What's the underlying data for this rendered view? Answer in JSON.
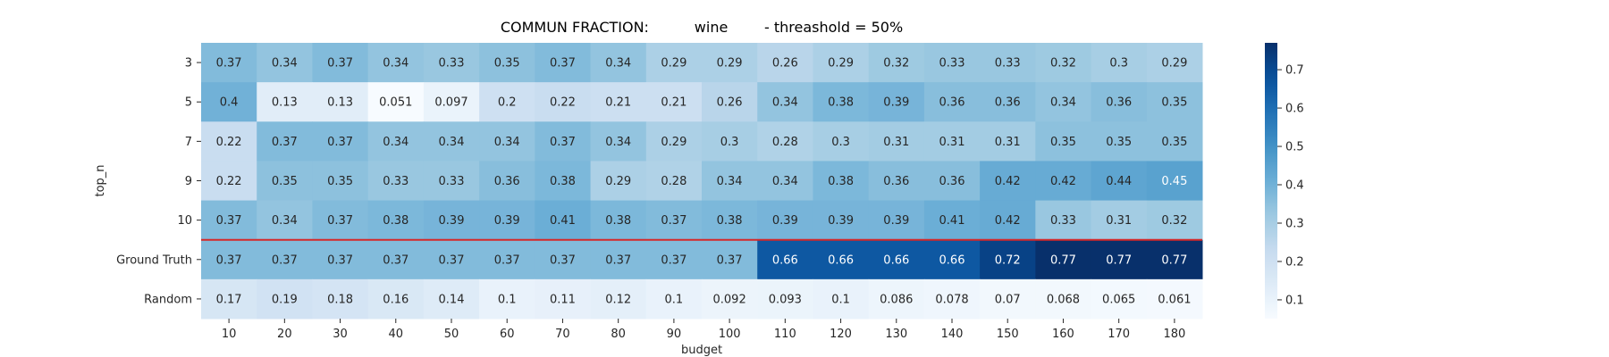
{
  "chart_data": {
    "type": "heatmap",
    "title": "COMMUN FRACTION:          wine        - threashold = 50%",
    "xlabel": "budget",
    "ylabel": "top_n",
    "x_categories": [
      "10",
      "20",
      "30",
      "40",
      "50",
      "60",
      "70",
      "80",
      "90",
      "100",
      "110",
      "120",
      "130",
      "140",
      "150",
      "160",
      "170",
      "180"
    ],
    "y_categories": [
      "3",
      "5",
      "7",
      "9",
      "10",
      "Ground Truth",
      "Random"
    ],
    "values": [
      [
        0.37,
        0.34,
        0.37,
        0.34,
        0.33,
        0.35,
        0.37,
        0.34,
        0.29,
        0.29,
        0.26,
        0.29,
        0.32,
        0.33,
        0.33,
        0.32,
        0.3,
        0.29
      ],
      [
        0.4,
        0.13,
        0.13,
        0.051,
        0.097,
        0.2,
        0.22,
        0.21,
        0.21,
        0.26,
        0.34,
        0.38,
        0.39,
        0.36,
        0.36,
        0.34,
        0.36,
        0.35
      ],
      [
        0.22,
        0.37,
        0.37,
        0.34,
        0.34,
        0.34,
        0.37,
        0.34,
        0.29,
        0.3,
        0.28,
        0.3,
        0.31,
        0.31,
        0.31,
        0.35,
        0.35,
        0.35
      ],
      [
        0.22,
        0.35,
        0.35,
        0.33,
        0.33,
        0.36,
        0.38,
        0.29,
        0.28,
        0.34,
        0.34,
        0.38,
        0.36,
        0.36,
        0.42,
        0.42,
        0.44,
        0.45
      ],
      [
        0.37,
        0.34,
        0.37,
        0.38,
        0.39,
        0.39,
        0.41,
        0.38,
        0.37,
        0.38,
        0.39,
        0.39,
        0.39,
        0.41,
        0.42,
        0.33,
        0.31,
        0.32
      ],
      [
        0.37,
        0.37,
        0.37,
        0.37,
        0.37,
        0.37,
        0.37,
        0.37,
        0.37,
        0.37,
        0.66,
        0.66,
        0.66,
        0.66,
        0.72,
        0.77,
        0.77,
        0.77
      ],
      [
        0.17,
        0.19,
        0.18,
        0.16,
        0.14,
        0.1,
        0.11,
        0.12,
        0.1,
        0.092,
        0.093,
        0.1,
        0.086,
        0.078,
        0.07,
        0.068,
        0.065,
        0.061
      ]
    ],
    "colormap": "Blues",
    "vmin": 0.051,
    "vmax": 0.77,
    "colorbar_ticks": [
      "0.1",
      "0.2",
      "0.3",
      "0.4",
      "0.5",
      "0.6",
      "0.7"
    ],
    "separator_after_row": "10",
    "separator_color": "#d62728"
  }
}
